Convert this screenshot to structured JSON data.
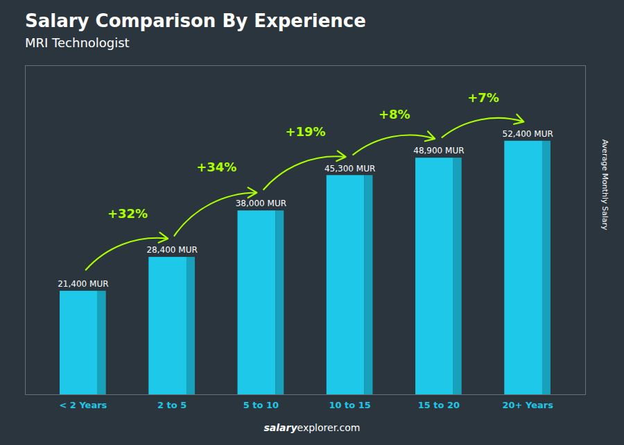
{
  "chart_data": {
    "type": "bar",
    "title": "Salary Comparison By Experience",
    "subtitle": "MRI Technologist",
    "categories": [
      "< 2 Years",
      "2 to 5",
      "5 to 10",
      "10 to 15",
      "15 to 20",
      "20+ Years"
    ],
    "values": [
      21400,
      28400,
      38000,
      45300,
      48900,
      52400
    ],
    "value_labels": [
      "21,400 MUR",
      "28,400 MUR",
      "38,000 MUR",
      "45,300 MUR",
      "48,900 MUR",
      "52,400 MUR"
    ],
    "data_labels": true,
    "color": "#1EC8E8",
    "ylim": [
      0,
      68000
    ],
    "ylabel": "Average Monthly Salary",
    "tick_labels": "x",
    "annotations": [
      {
        "text": "+32%",
        "color": "#AAFF00"
      },
      {
        "text": "+34%",
        "color": "#AAFF00"
      },
      {
        "text": "+19%",
        "color": "#AAFF00"
      },
      {
        "text": "+8%",
        "color": "#AAFF00"
      },
      {
        "text": "+7%",
        "color": "#AAFF00"
      }
    ],
    "caption_bold": "salary",
    "caption": "explorer.com"
  }
}
